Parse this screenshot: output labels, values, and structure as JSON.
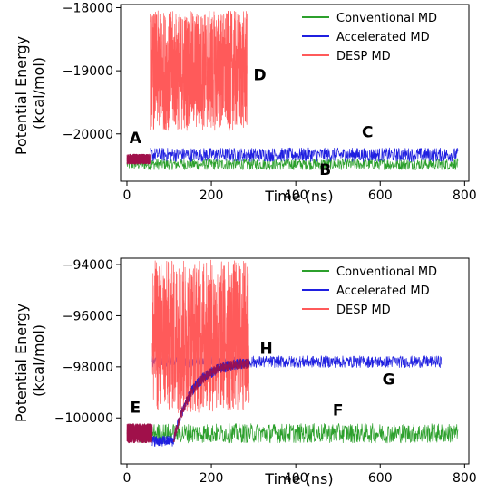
{
  "chart_data": [
    {
      "type": "line",
      "xlabel": "Time (ns)",
      "ylabel": "Potential Energy\n(kcal/mol)",
      "xlim": [
        -15,
        810
      ],
      "ylim": [
        -20750,
        -17950
      ],
      "xticks": [
        0,
        200,
        400,
        600,
        800
      ],
      "yticks": [
        -18000,
        -19000,
        -20000
      ],
      "ytick_labels": [
        "−18000",
        "−19000",
        "−20000"
      ],
      "grid": false,
      "legend": "top-right",
      "series": [
        {
          "name": "Conventional MD",
          "color": "#2ca02c",
          "segments": [
            [
              0,
              785,
              -20480,
              90
            ]
          ]
        },
        {
          "name": "Accelerated MD",
          "color": "#1f1fe0",
          "segments": [
            [
              55,
              785,
              -20330,
              110
            ]
          ]
        },
        {
          "name": "DESP MD",
          "color": "#ff5a5a",
          "segments": [
            [
              0,
              55,
              -20400,
              80
            ],
            [
              55,
              285,
              -19000,
              950
            ]
          ]
        }
      ],
      "overlap_color": "#a0104a",
      "annotations": [
        {
          "text": "A",
          "x": 20,
          "y": -20150
        },
        {
          "text": "B",
          "x": 470,
          "y": -20650
        },
        {
          "text": "C",
          "x": 570,
          "y": -20050
        },
        {
          "text": "D",
          "x": 315,
          "y": -19150
        }
      ]
    },
    {
      "type": "line",
      "xlabel": "Time (ns)",
      "ylabel": "Potential Energy\n(kcal/mol)",
      "xlim": [
        -15,
        810
      ],
      "ylim": [
        -101800,
        -93750
      ],
      "xticks": [
        0,
        200,
        400,
        600,
        800
      ],
      "yticks": [
        -94000,
        -96000,
        -98000,
        -100000
      ],
      "ytick_labels": [
        "−94000",
        "−96000",
        "−98000",
        "−100000"
      ],
      "grid": false,
      "legend": "top-right",
      "series": [
        {
          "name": "Conventional MD",
          "color": "#2ca02c",
          "segments": [
            [
              0,
              785,
              -100600,
              380
            ]
          ]
        },
        {
          "name": "Accelerated MD",
          "color": "#1f1fe0",
          "segments": [
            [
              60,
              745,
              -97800,
              230
            ]
          ]
        },
        {
          "name": "DESP MD",
          "color": "#ff5a5a",
          "segments": [
            [
              0,
              60,
              -100600,
              380
            ],
            [
              60,
              290,
              -96800,
              3000
            ]
          ]
        }
      ],
      "overlap_color": "#a0104a",
      "annotations": [
        {
          "text": "E",
          "x": 20,
          "y": -99800
        },
        {
          "text": "F",
          "x": 500,
          "y": -99900
        },
        {
          "text": "G",
          "x": 620,
          "y": -98700
        },
        {
          "text": "H",
          "x": 330,
          "y": -97500
        }
      ]
    }
  ]
}
